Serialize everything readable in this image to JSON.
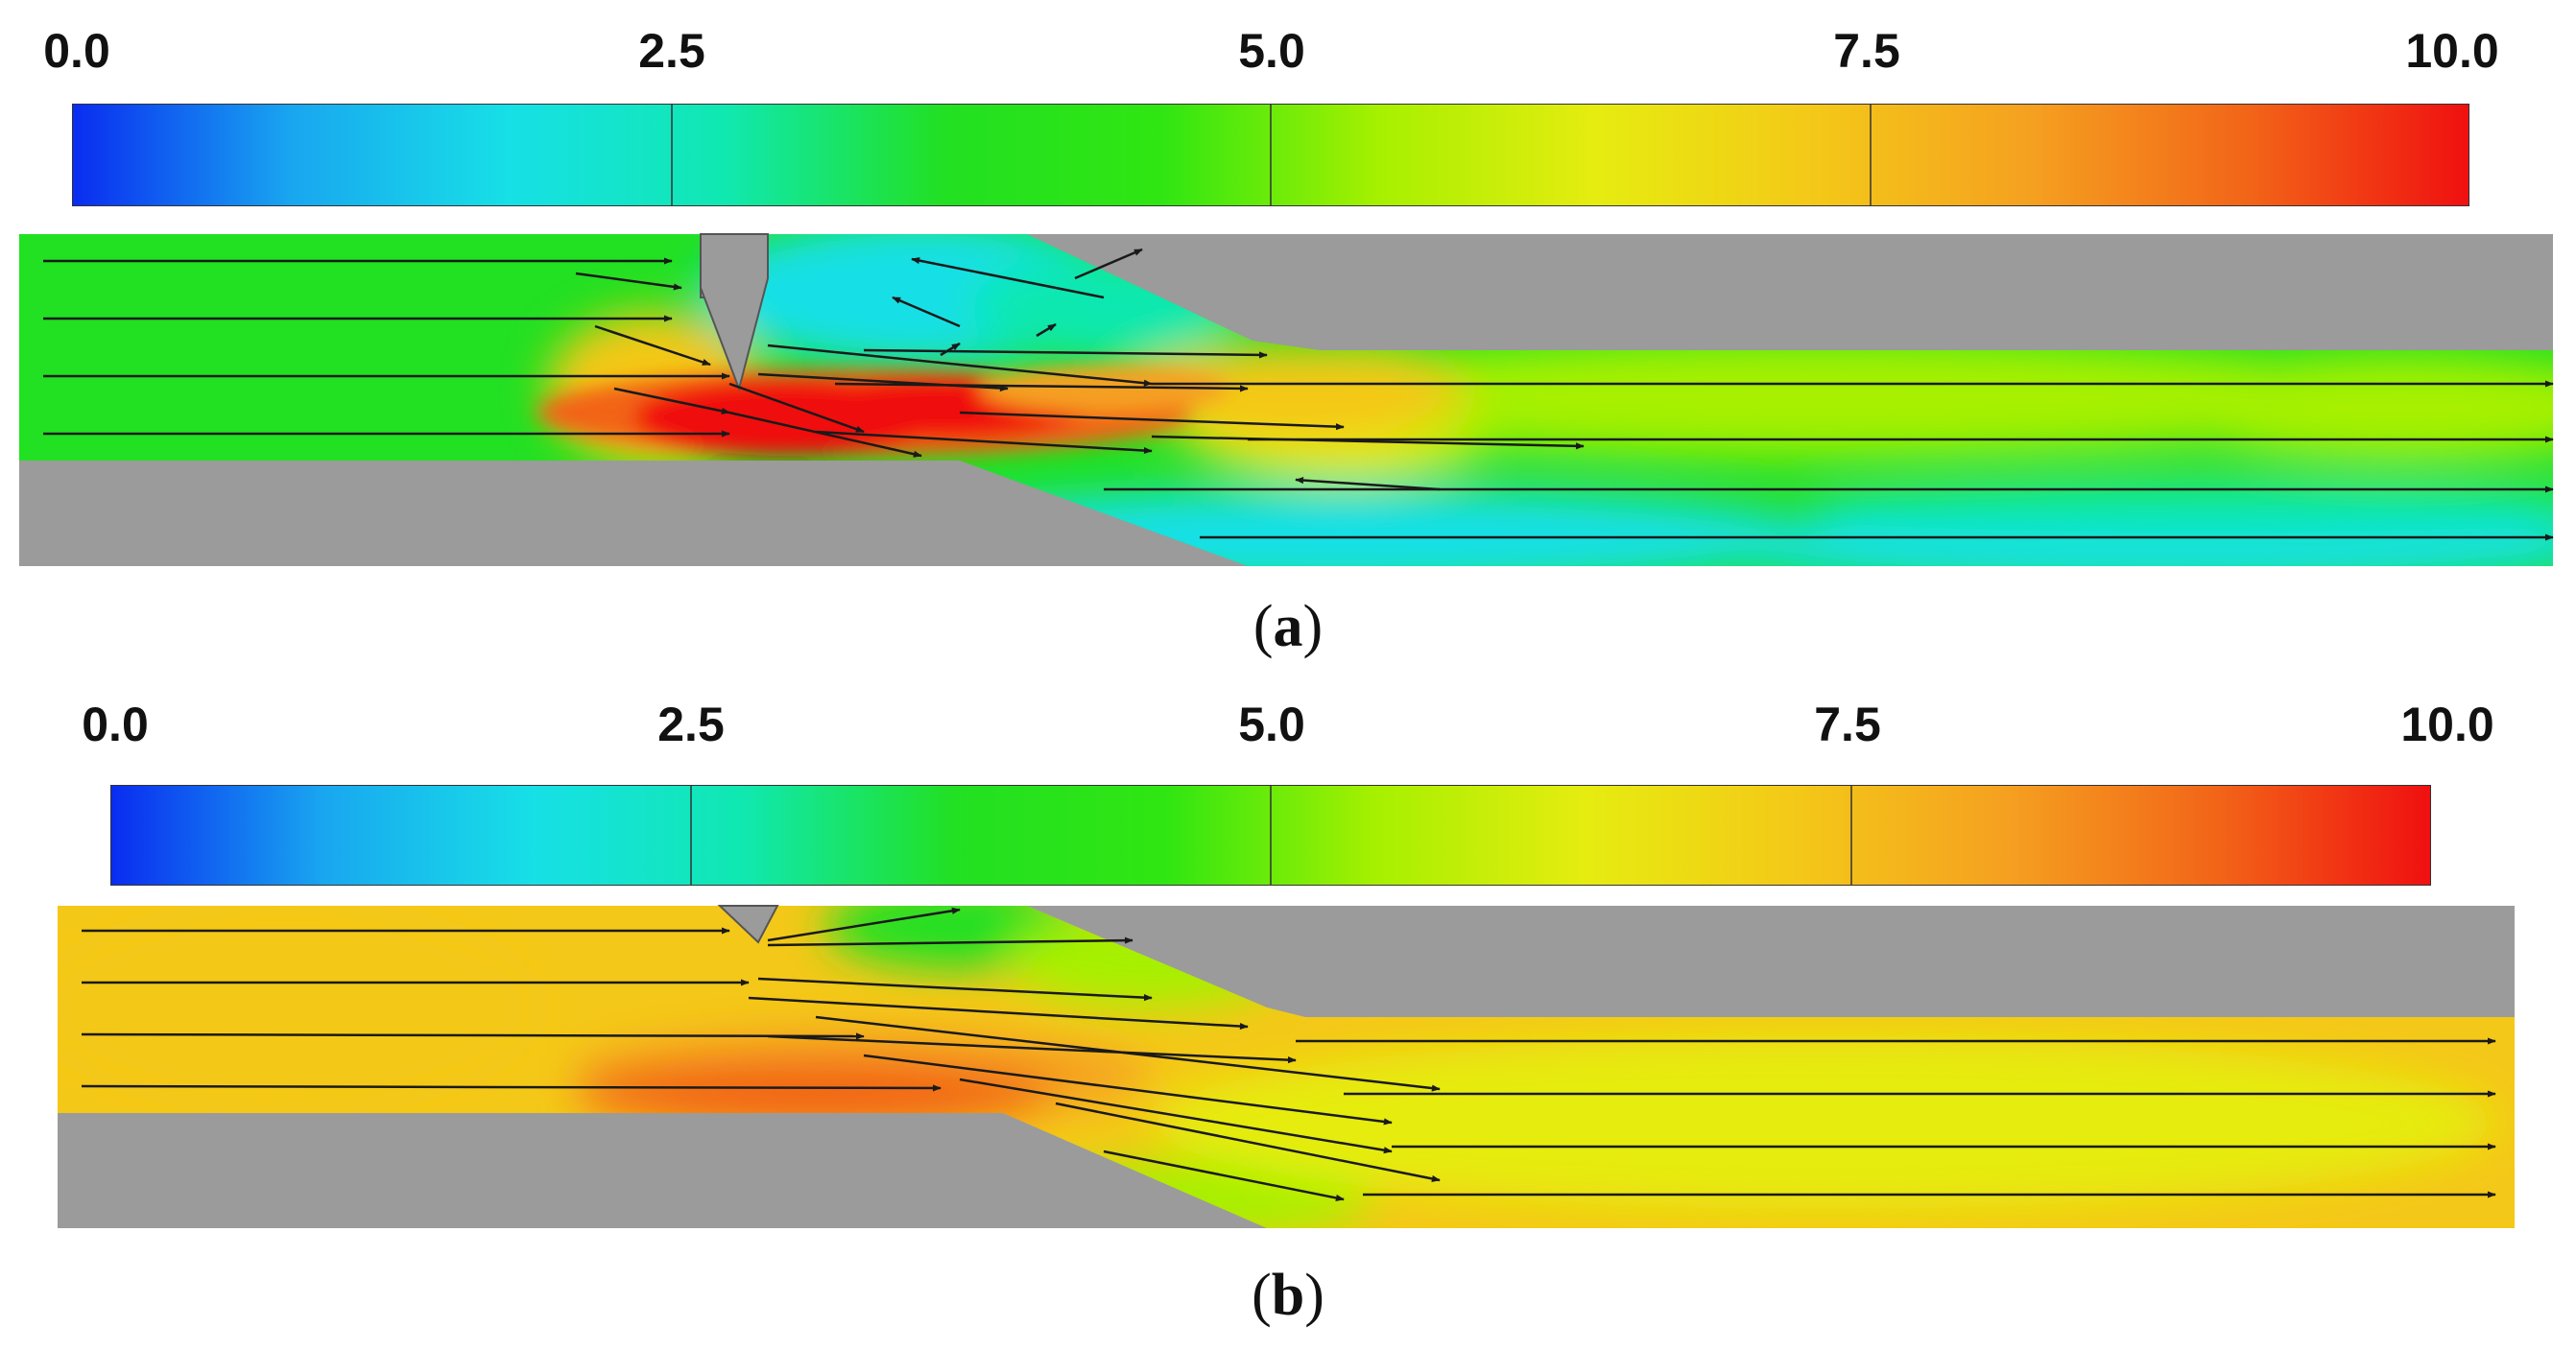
{
  "colorbar": {
    "ticks": [
      "0.0",
      "2.5",
      "5.0",
      "7.5",
      "10.0"
    ],
    "colors": [
      "#0a2cf0",
      "#19a6f0",
      "#17e0e6",
      "#10e8b0",
      "#22e022",
      "#30e612",
      "#a6f000",
      "#e6ec10",
      "#f4c818",
      "#f5a020",
      "#f26418",
      "#f01010"
    ]
  },
  "panels": [
    {
      "id": "a",
      "caption_open": "(",
      "caption_letter": "a",
      "caption_close": ")"
    },
    {
      "id": "b",
      "caption_open": "(",
      "caption_letter": "b",
      "caption_close": ")"
    }
  ],
  "colors": {
    "wall": "#9b9b9b",
    "arrow": "#1a1a1a"
  }
}
